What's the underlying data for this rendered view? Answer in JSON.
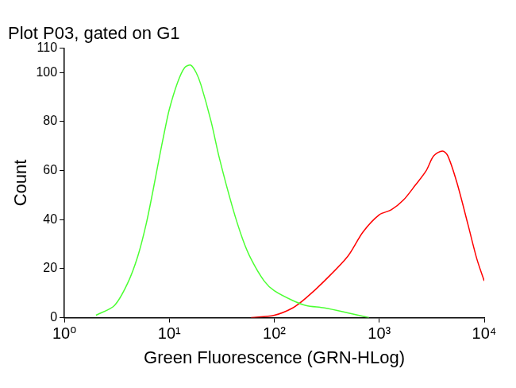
{
  "chart_data": {
    "type": "line",
    "title": "Plot P03, gated on G1",
    "x_label": "Green Fluorescence (GRN-HLog)",
    "y_label": "Count",
    "log": "x",
    "grid": false,
    "xlim": [
      1,
      10000
    ],
    "xticks": [
      {
        "value": 1,
        "label": "10⁰"
      },
      {
        "value": 10,
        "label": "10¹"
      },
      {
        "value": 100,
        "label": "10²"
      },
      {
        "value": 1000,
        "label": "10³"
      },
      {
        "value": 10000,
        "label": "10⁴"
      }
    ],
    "ylim": [
      0,
      110
    ],
    "yticks": [
      0,
      20,
      40,
      60,
      80,
      100,
      110
    ],
    "series": [
      {
        "color": "#4cff33",
        "x": [
          2,
          3,
          4,
          5,
          6,
          7,
          8,
          9,
          10,
          12,
          14,
          16,
          18,
          20,
          25,
          30,
          40,
          50,
          60,
          80,
          100,
          150,
          200,
          300,
          500,
          800
        ],
        "values": [
          1,
          5,
          14,
          25,
          38,
          52,
          65,
          76,
          85,
          96,
          102,
          103,
          100,
          95,
          80,
          65,
          45,
          32,
          24,
          15,
          11,
          7,
          5,
          4,
          2,
          0
        ]
      },
      {
        "color": "#ff0000",
        "x": [
          60,
          100,
          150,
          200,
          300,
          500,
          700,
          1000,
          1300,
          1700,
          2200,
          2800,
          3300,
          4000,
          4500,
          5500,
          7000,
          8500,
          10000
        ],
        "values": [
          0,
          1,
          4,
          8,
          15,
          25,
          35,
          42,
          44,
          48,
          54,
          60,
          66,
          68,
          66,
          55,
          38,
          24,
          15
        ]
      }
    ]
  }
}
